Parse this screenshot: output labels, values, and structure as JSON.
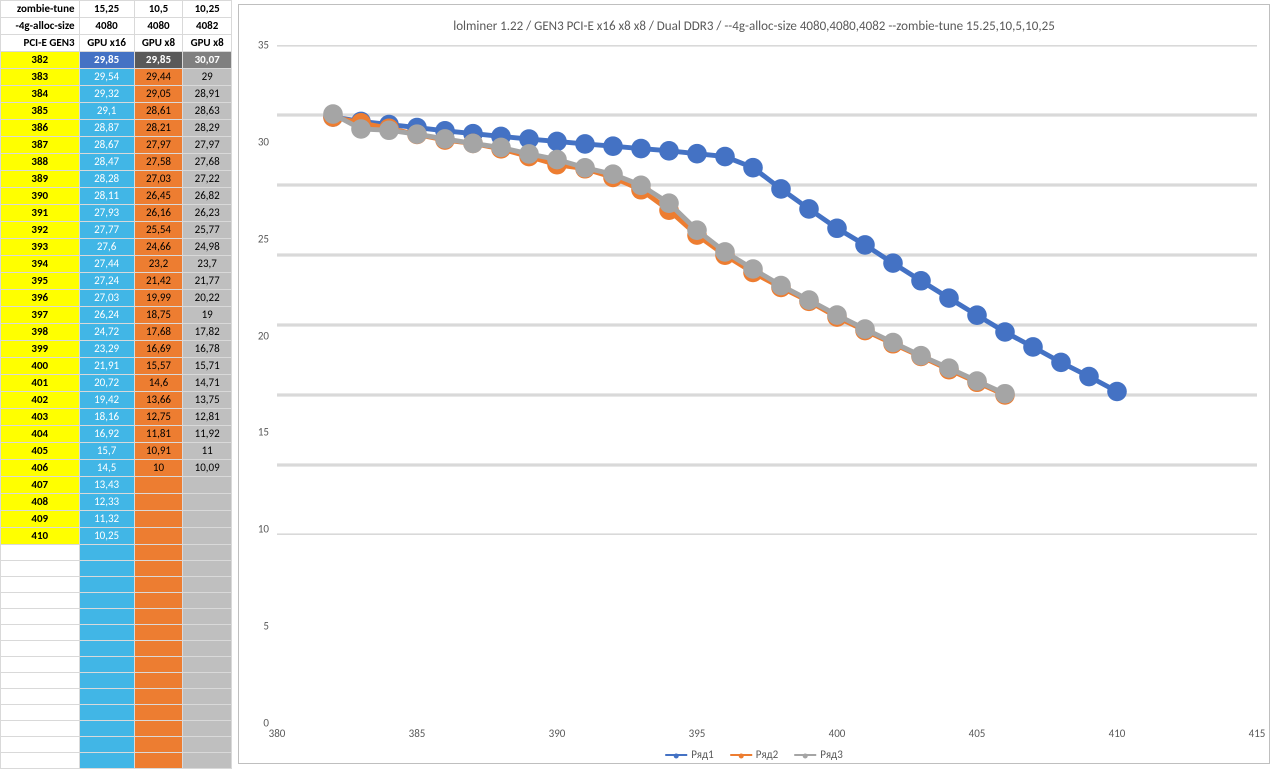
{
  "table": {
    "header_rows": [
      {
        "label": "zombie-tune",
        "cells": [
          "15,25",
          "10,5",
          "10,25"
        ]
      },
      {
        "label": "-4g-alloc-size",
        "cells": [
          "4080",
          "4080",
          "4082"
        ]
      },
      {
        "label": "PCI-E GEN3",
        "cells": [
          "GPU x16",
          "GPU x8",
          "GPU x8"
        ]
      }
    ],
    "first_row_highlight": {
      "c1_bg": "#4472c4",
      "c1_fg": "#ffffff",
      "c2_bg": "#595959",
      "c2_fg": "#ffffff",
      "c3_bg": "#808080",
      "c3_fg": "#ffffff"
    },
    "col_colors": {
      "idx_bg": "#ffff00",
      "idx_fg": "#000000",
      "c1_bg": "#41b6e6",
      "c1_fg": "#ffffff",
      "c2_bg": "#ed7d31",
      "c2_fg": "#000000",
      "c3_bg": "#bfbfbf",
      "c3_fg": "#000000"
    },
    "rows": [
      {
        "idx": 382,
        "c1": "29,85",
        "c2": "29,85",
        "c3": "30,07"
      },
      {
        "idx": 383,
        "c1": "29,54",
        "c2": "29,44",
        "c3": "29"
      },
      {
        "idx": 384,
        "c1": "29,32",
        "c2": "29,05",
        "c3": "28,91"
      },
      {
        "idx": 385,
        "c1": "29,1",
        "c2": "28,61",
        "c3": "28,63"
      },
      {
        "idx": 386,
        "c1": "28,87",
        "c2": "28,21",
        "c3": "28,29"
      },
      {
        "idx": 387,
        "c1": "28,67",
        "c2": "27,97",
        "c3": "27,97"
      },
      {
        "idx": 388,
        "c1": "28,47",
        "c2": "27,58",
        "c3": "27,68"
      },
      {
        "idx": 389,
        "c1": "28,28",
        "c2": "27,03",
        "c3": "27,22"
      },
      {
        "idx": 390,
        "c1": "28,11",
        "c2": "26,45",
        "c3": "26,82"
      },
      {
        "idx": 391,
        "c1": "27,93",
        "c2": "26,16",
        "c3": "26,23"
      },
      {
        "idx": 392,
        "c1": "27,77",
        "c2": "25,54",
        "c3": "25,77"
      },
      {
        "idx": 393,
        "c1": "27,6",
        "c2": "24,66",
        "c3": "24,98"
      },
      {
        "idx": 394,
        "c1": "27,44",
        "c2": "23,2",
        "c3": "23,7"
      },
      {
        "idx": 395,
        "c1": "27,24",
        "c2": "21,42",
        "c3": "21,77"
      },
      {
        "idx": 396,
        "c1": "27,03",
        "c2": "19,99",
        "c3": "20,22"
      },
      {
        "idx": 397,
        "c1": "26,24",
        "c2": "18,75",
        "c3": "19"
      },
      {
        "idx": 398,
        "c1": "24,72",
        "c2": "17,68",
        "c3": "17,82"
      },
      {
        "idx": 399,
        "c1": "23,29",
        "c2": "16,69",
        "c3": "16,78"
      },
      {
        "idx": 400,
        "c1": "21,91",
        "c2": "15,57",
        "c3": "15,71"
      },
      {
        "idx": 401,
        "c1": "20,72",
        "c2": "14,6",
        "c3": "14,71"
      },
      {
        "idx": 402,
        "c1": "19,42",
        "c2": "13,66",
        "c3": "13,75"
      },
      {
        "idx": 403,
        "c1": "18,16",
        "c2": "12,75",
        "c3": "12,81"
      },
      {
        "idx": 404,
        "c1": "16,92",
        "c2": "11,81",
        "c3": "11,92"
      },
      {
        "idx": 405,
        "c1": "15,7",
        "c2": "10,91",
        "c3": "11"
      },
      {
        "idx": 406,
        "c1": "14,5",
        "c2": "10",
        "c3": "10,09"
      },
      {
        "idx": 407,
        "c1": "13,43",
        "c2": "",
        "c3": ""
      },
      {
        "idx": 408,
        "c1": "12,33",
        "c2": "",
        "c3": ""
      },
      {
        "idx": 409,
        "c1": "11,32",
        "c2": "",
        "c3": ""
      },
      {
        "idx": 410,
        "c1": "10,25",
        "c2": "",
        "c3": ""
      }
    ]
  },
  "chart": {
    "type": "line",
    "title": "lolminer 1.22  / GEN3 PCI-E x16 x8 x8  / Dual DDR3 / --4g-alloc-size 4080,4080,4082 --zombie-tune 15.25,10,5,10,25",
    "title_fontsize": 13,
    "title_color": "#595959",
    "background_color": "#ffffff",
    "border_color": "#bfbfbf",
    "grid_color": "#d9d9d9",
    "axis_label_color": "#595959",
    "xlim": [
      380,
      415
    ],
    "ylim": [
      0,
      35
    ],
    "xtick_step": 5,
    "ytick_step": 5,
    "marker_size": 3,
    "line_width": 1.5,
    "legend": {
      "position": "bottom-center",
      "items": [
        {
          "label": "Ряд1",
          "color": "#4472c4"
        },
        {
          "label": "Ряд2",
          "color": "#ed7d31"
        },
        {
          "label": "Ряд3",
          "color": "#a5a5a5"
        }
      ]
    },
    "series": [
      {
        "name": "Ряд1",
        "color": "#4472c4",
        "marker": "circle",
        "x": [
          382,
          383,
          384,
          385,
          386,
          387,
          388,
          389,
          390,
          391,
          392,
          393,
          394,
          395,
          396,
          397,
          398,
          399,
          400,
          401,
          402,
          403,
          404,
          405,
          406,
          407,
          408,
          409,
          410
        ],
        "y": [
          29.85,
          29.54,
          29.32,
          29.1,
          28.87,
          28.67,
          28.47,
          28.28,
          28.11,
          27.93,
          27.77,
          27.6,
          27.44,
          27.24,
          27.03,
          26.24,
          24.72,
          23.29,
          21.91,
          20.72,
          19.42,
          18.16,
          16.92,
          15.7,
          14.5,
          13.43,
          12.33,
          11.32,
          10.25
        ]
      },
      {
        "name": "Ряд2",
        "color": "#ed7d31",
        "marker": "circle",
        "x": [
          382,
          383,
          384,
          385,
          386,
          387,
          388,
          389,
          390,
          391,
          392,
          393,
          394,
          395,
          396,
          397,
          398,
          399,
          400,
          401,
          402,
          403,
          404,
          405,
          406
        ],
        "y": [
          29.85,
          29.44,
          29.05,
          28.61,
          28.21,
          27.97,
          27.58,
          27.03,
          26.45,
          26.16,
          25.54,
          24.66,
          23.2,
          21.42,
          19.99,
          18.75,
          17.68,
          16.69,
          15.57,
          14.6,
          13.66,
          12.75,
          11.81,
          10.91,
          10
        ]
      },
      {
        "name": "Ряд3",
        "color": "#a5a5a5",
        "marker": "circle",
        "x": [
          382,
          383,
          384,
          385,
          386,
          387,
          388,
          389,
          390,
          391,
          392,
          393,
          394,
          395,
          396,
          397,
          398,
          399,
          400,
          401,
          402,
          403,
          404,
          405,
          406
        ],
        "y": [
          30.07,
          29,
          28.91,
          28.63,
          28.29,
          27.97,
          27.68,
          27.22,
          26.82,
          26.23,
          25.77,
          24.98,
          23.7,
          21.77,
          20.22,
          19,
          17.82,
          16.78,
          15.71,
          14.71,
          13.75,
          12.81,
          11.92,
          11,
          10.09
        ]
      }
    ]
  }
}
